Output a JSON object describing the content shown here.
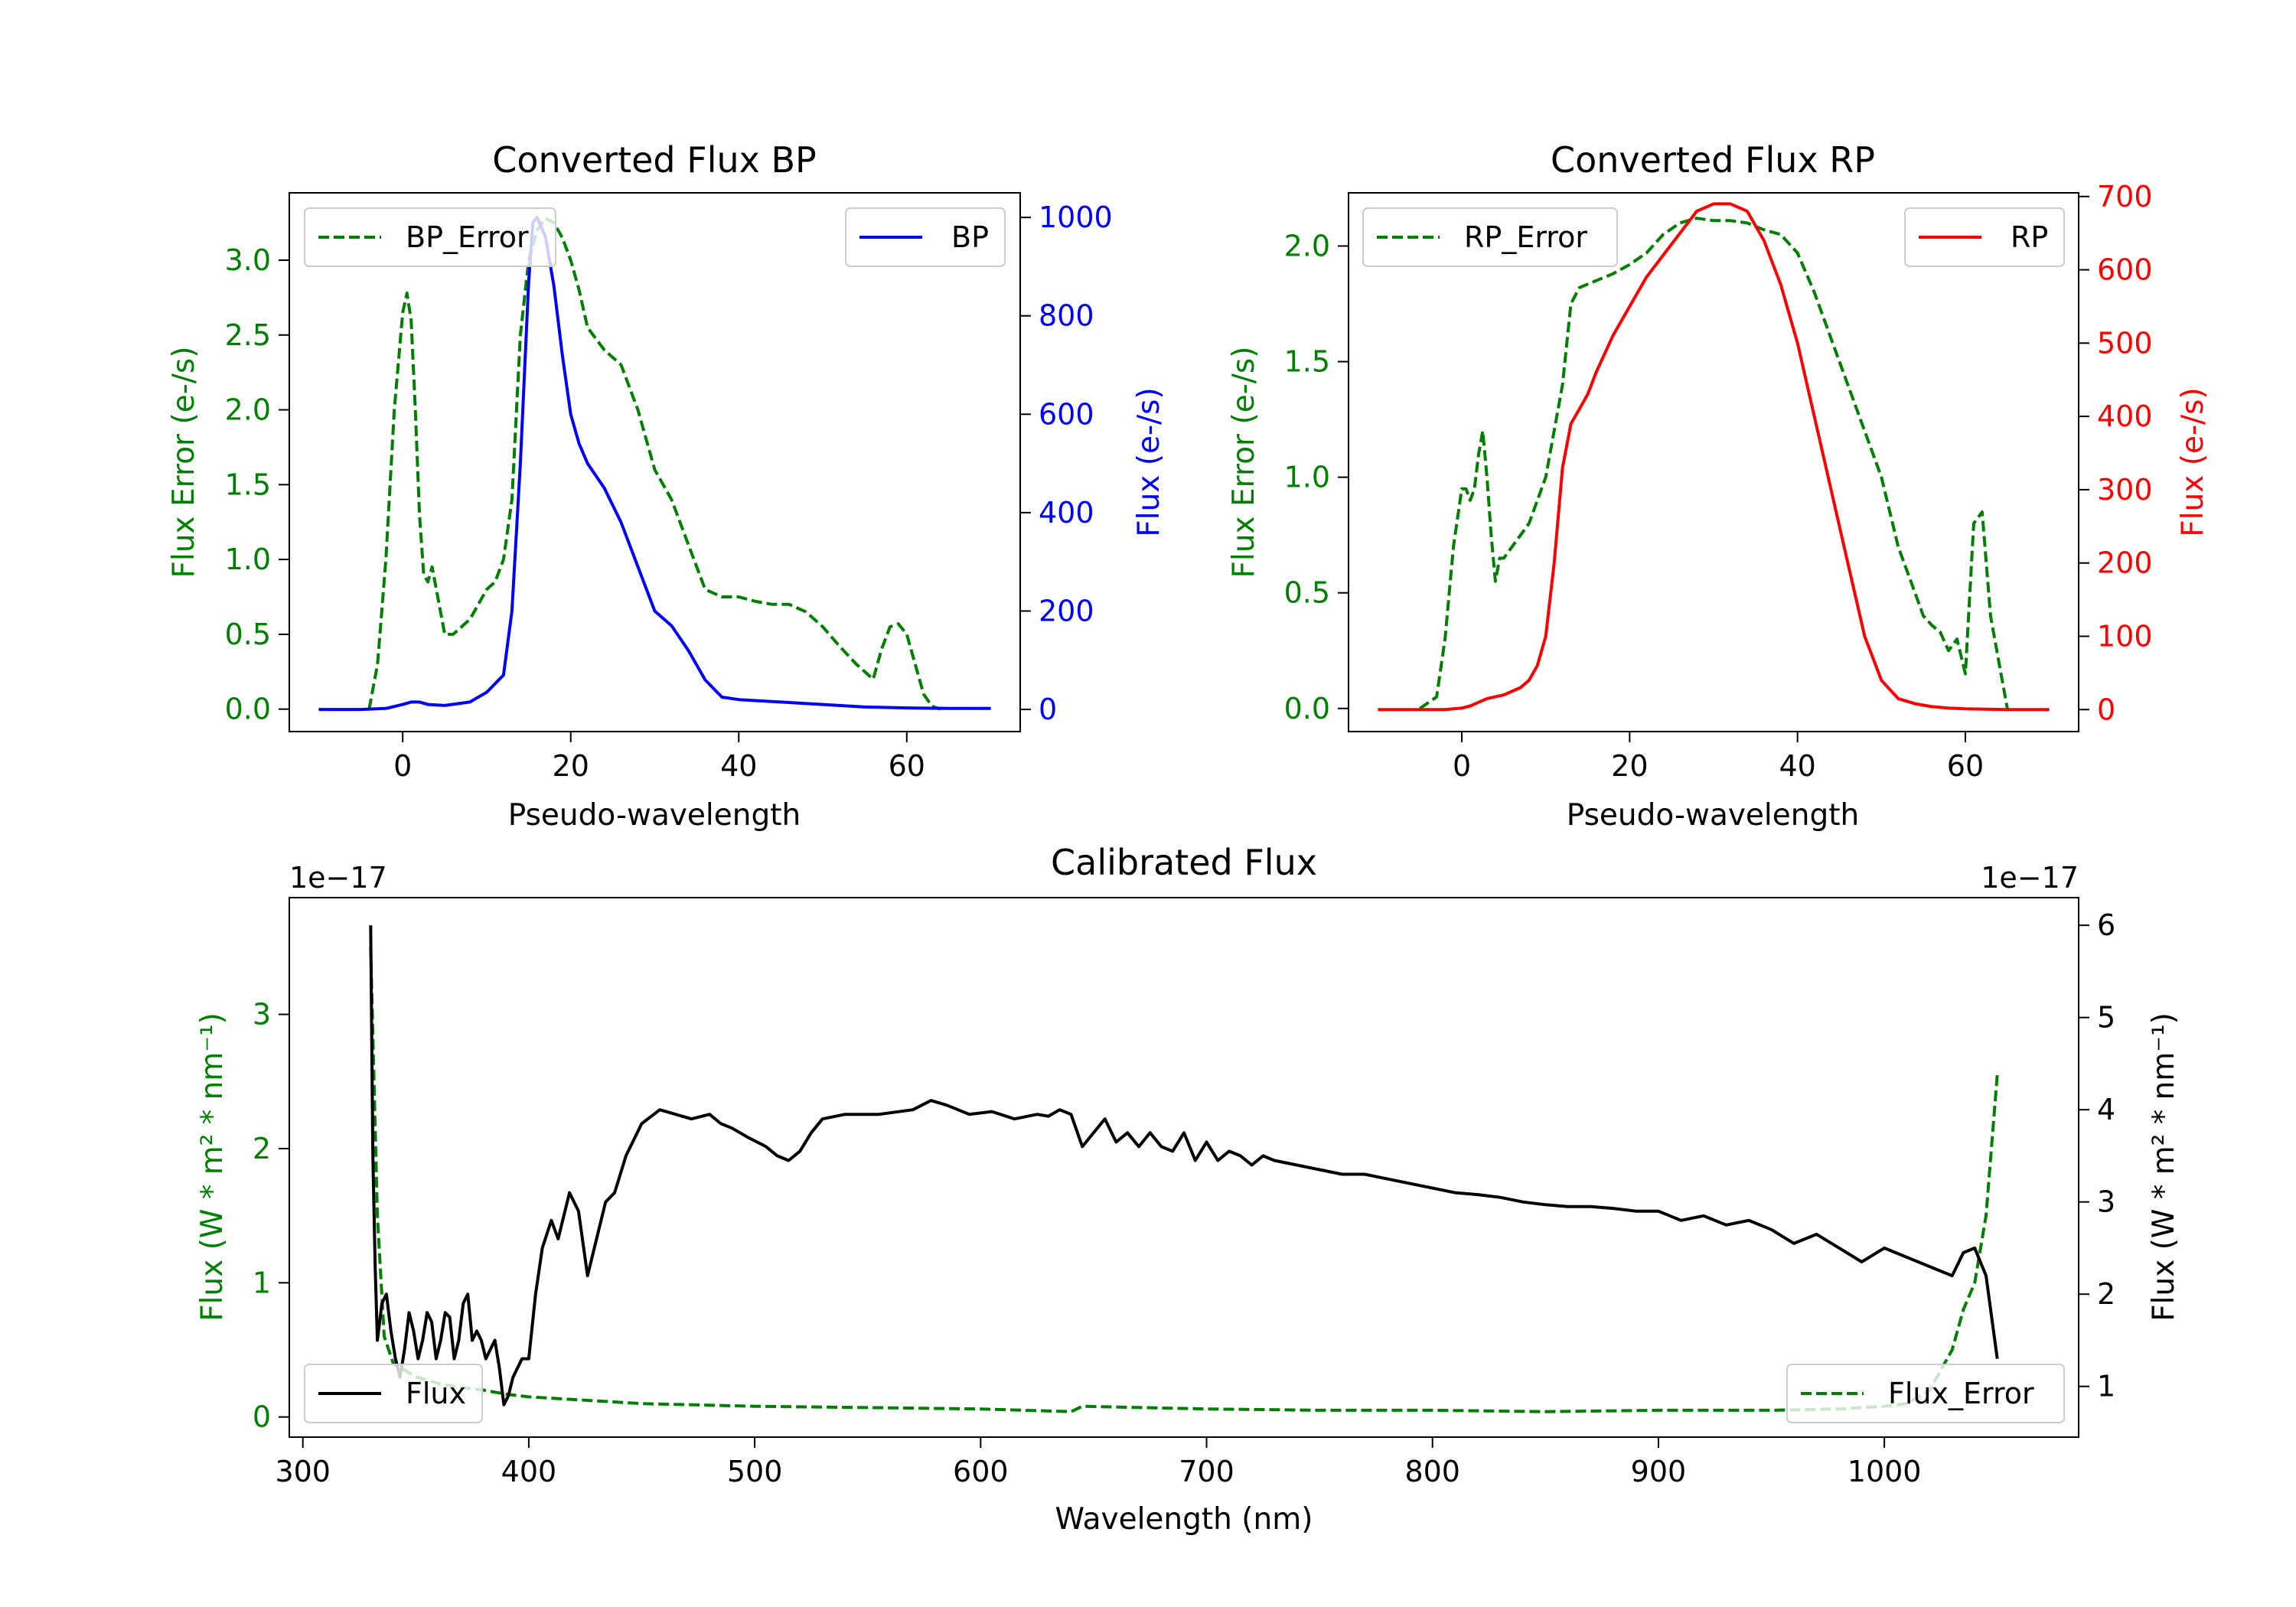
{
  "colors": {
    "error": "#008000",
    "bp": "#0000ff",
    "rp": "#ff0000",
    "flux": "#000000",
    "axes": "#000000"
  },
  "chart_data": [
    {
      "id": "bp",
      "type": "line",
      "title": "Converted Flux BP",
      "xlabel": "Pseudo-wavelength",
      "ylabel_left": "Flux Error (e-/s)",
      "ylabel_right": "Flux (e-/s)",
      "xlim": [
        -13.5,
        73.5
      ],
      "ylim_left": [
        -0.15,
        3.45
      ],
      "ylim_right": [
        -45,
        1050
      ],
      "xticks": [
        0,
        20,
        40,
        60
      ],
      "yticks_left": [
        0.0,
        0.5,
        1.0,
        1.5,
        2.0,
        2.5,
        3.0
      ],
      "yticks_right": [
        0,
        200,
        400,
        600,
        800,
        1000
      ],
      "legend_left": "BP_Error",
      "legend_right": "BP",
      "series": [
        {
          "name": "BP_Error",
          "axis": "left",
          "style": "dashed",
          "color": "#008000",
          "x": [
            -4,
            -3,
            -2,
            -1,
            0,
            0.5,
            1,
            1.5,
            2,
            2.5,
            3,
            3.5,
            4,
            5,
            6,
            8,
            10,
            11,
            12,
            13,
            14,
            15,
            16,
            17,
            18,
            19,
            20,
            21,
            22,
            24,
            26,
            28,
            30,
            32,
            34,
            36,
            38,
            40,
            42,
            44,
            46,
            48,
            50,
            52,
            54,
            56,
            57,
            58,
            59,
            60,
            61,
            62,
            63,
            64
          ],
          "y": [
            0.0,
            0.3,
            1.0,
            2.0,
            2.65,
            2.78,
            2.6,
            2.0,
            1.3,
            0.9,
            0.85,
            0.95,
            0.8,
            0.5,
            0.5,
            0.6,
            0.8,
            0.85,
            1.0,
            1.4,
            2.5,
            3.0,
            3.2,
            3.28,
            3.25,
            3.15,
            3.0,
            2.8,
            2.55,
            2.4,
            2.3,
            2.0,
            1.6,
            1.4,
            1.1,
            0.8,
            0.75,
            0.75,
            0.72,
            0.7,
            0.7,
            0.65,
            0.55,
            0.42,
            0.3,
            0.2,
            0.4,
            0.55,
            0.57,
            0.5,
            0.3,
            0.1,
            0.02,
            0.0
          ]
        },
        {
          "name": "BP",
          "axis": "right",
          "style": "solid",
          "color": "#0000ff",
          "x": [
            -10,
            -5,
            -2,
            0,
            1,
            2,
            3,
            5,
            8,
            10,
            12,
            13,
            14,
            15,
            15.5,
            16,
            17,
            18,
            19,
            20,
            21,
            22,
            24,
            26,
            28,
            30,
            32,
            34,
            36,
            38,
            40,
            45,
            50,
            55,
            60,
            65,
            70
          ],
          "y": [
            0,
            0,
            2,
            10,
            15,
            15,
            10,
            8,
            15,
            35,
            70,
            200,
            500,
            870,
            990,
            1000,
            960,
            860,
            720,
            600,
            540,
            500,
            450,
            380,
            290,
            200,
            170,
            120,
            60,
            25,
            20,
            15,
            10,
            5,
            3,
            2,
            2
          ]
        }
      ]
    },
    {
      "id": "rp",
      "type": "line",
      "title": "Converted Flux RP",
      "xlabel": "Pseudo-wavelength",
      "ylabel_left": "Flux Error (e-/s)",
      "ylabel_right": "Flux (e-/s)",
      "xlim": [
        -13.5,
        73.5
      ],
      "ylim_left": [
        -0.1,
        2.23
      ],
      "ylim_right": [
        -30,
        705
      ],
      "xticks": [
        0,
        20,
        40,
        60
      ],
      "yticks_left": [
        0.0,
        0.5,
        1.0,
        1.5,
        2.0
      ],
      "yticks_right": [
        0,
        100,
        200,
        300,
        400,
        500,
        600,
        700
      ],
      "legend_left": "RP_Error",
      "legend_right": "RP",
      "series": [
        {
          "name": "RP_Error",
          "axis": "left",
          "style": "dashed",
          "color": "#008000",
          "x": [
            -5,
            -3,
            -2,
            -1,
            0,
            0.5,
            1,
            1.5,
            2,
            2.5,
            3,
            3.5,
            4,
            4.5,
            5,
            6,
            8,
            10,
            12,
            13,
            14,
            16,
            18,
            20,
            22,
            24,
            26,
            28,
            30,
            32,
            34,
            36,
            38,
            40,
            42,
            44,
            46,
            48,
            50,
            52,
            54,
            55,
            56,
            57,
            58,
            59,
            60,
            61,
            62,
            63,
            64,
            65
          ],
          "y": [
            0.0,
            0.05,
            0.3,
            0.7,
            0.95,
            0.95,
            0.9,
            0.95,
            1.1,
            1.2,
            1.0,
            0.75,
            0.55,
            0.65,
            0.65,
            0.7,
            0.8,
            1.0,
            1.4,
            1.75,
            1.82,
            1.85,
            1.88,
            1.92,
            1.97,
            2.05,
            2.1,
            2.12,
            2.11,
            2.11,
            2.1,
            2.07,
            2.05,
            1.97,
            1.8,
            1.6,
            1.4,
            1.2,
            1.0,
            0.7,
            0.5,
            0.4,
            0.36,
            0.33,
            0.25,
            0.3,
            0.15,
            0.8,
            0.85,
            0.4,
            0.2,
            0.0
          ]
        },
        {
          "name": "RP",
          "axis": "right",
          "style": "solid",
          "color": "#ff0000",
          "x": [
            -10,
            -5,
            -2,
            0,
            1,
            2,
            3,
            5,
            7,
            8,
            9,
            10,
            11,
            12,
            13,
            14,
            15,
            16,
            18,
            20,
            22,
            24,
            26,
            28,
            30,
            32,
            34,
            36,
            38,
            40,
            42,
            44,
            46,
            48,
            50,
            52,
            54,
            56,
            58,
            60,
            65,
            70
          ],
          "y": [
            0,
            0,
            0,
            2,
            5,
            10,
            15,
            20,
            30,
            40,
            60,
            100,
            200,
            330,
            390,
            410,
            430,
            460,
            510,
            550,
            590,
            620,
            650,
            680,
            690,
            690,
            680,
            640,
            580,
            500,
            400,
            300,
            200,
            100,
            40,
            15,
            8,
            4,
            2,
            1,
            0,
            0
          ]
        }
      ]
    },
    {
      "id": "calibrated",
      "type": "line",
      "title": "Calibrated Flux",
      "xlabel": "Wavelength (nm)",
      "ylabel_left": "Flux (W * m² * nm⁻¹)",
      "ylabel_right": "Flux (W * m² * nm⁻¹)",
      "multiplier_left": "1e−17",
      "multiplier_right": "1e−17",
      "xlim": [
        294,
        1086
      ],
      "ylim_left": [
        -0.15,
        3.87
      ],
      "ylim_right": [
        0.45,
        6.3
      ],
      "xticks": [
        300,
        400,
        500,
        600,
        700,
        800,
        900,
        1000
      ],
      "yticks_left": [
        0,
        1,
        2,
        3
      ],
      "yticks_right": [
        1,
        2,
        3,
        4,
        5,
        6
      ],
      "legend_left": "Flux",
      "legend_right": "Flux_Error",
      "series": [
        {
          "name": "Flux_Error",
          "axis": "left",
          "style": "dashed",
          "color": "#008000",
          "x": [
            330,
            333,
            336,
            340,
            350,
            360,
            370,
            380,
            390,
            400,
            420,
            450,
            500,
            550,
            600,
            640,
            645,
            700,
            750,
            800,
            850,
            900,
            950,
            980,
            1000,
            1010,
            1020,
            1030,
            1035,
            1040,
            1045,
            1050
          ],
          "y": [
            3.5,
            1.5,
            0.6,
            0.4,
            0.3,
            0.25,
            0.22,
            0.2,
            0.17,
            0.15,
            0.13,
            0.1,
            0.08,
            0.07,
            0.06,
            0.04,
            0.08,
            0.06,
            0.05,
            0.05,
            0.04,
            0.05,
            0.05,
            0.06,
            0.08,
            0.1,
            0.2,
            0.5,
            0.8,
            1.0,
            1.5,
            2.55
          ]
        },
        {
          "name": "Flux",
          "axis": "right",
          "style": "solid",
          "color": "#000000",
          "x": [
            330,
            331,
            332,
            333,
            335,
            337,
            339,
            341,
            343,
            345,
            347,
            349,
            351,
            353,
            355,
            357,
            359,
            361,
            363,
            365,
            367,
            369,
            371,
            373,
            375,
            377,
            379,
            381,
            383,
            385,
            387,
            389,
            391,
            393,
            395,
            397,
            400,
            403,
            406,
            410,
            413,
            418,
            422,
            426,
            430,
            434,
            438,
            443,
            450,
            458,
            465,
            472,
            480,
            485,
            490,
            497,
            505,
            510,
            515,
            520,
            525,
            530,
            540,
            555,
            570,
            578,
            585,
            595,
            605,
            615,
            625,
            630,
            635,
            640,
            645,
            650,
            655,
            660,
            665,
            670,
            675,
            680,
            685,
            690,
            695,
            700,
            705,
            710,
            715,
            720,
            725,
            730,
            740,
            750,
            760,
            770,
            780,
            790,
            800,
            810,
            820,
            830,
            840,
            850,
            860,
            870,
            880,
            890,
            900,
            910,
            920,
            930,
            940,
            950,
            960,
            970,
            980,
            990,
            1000,
            1010,
            1020,
            1030,
            1035,
            1040,
            1045,
            1050
          ],
          "y": [
            6.0,
            3.5,
            2.3,
            1.5,
            1.9,
            2.0,
            1.6,
            1.3,
            1.1,
            1.4,
            1.8,
            1.6,
            1.3,
            1.5,
            1.8,
            1.7,
            1.3,
            1.5,
            1.8,
            1.75,
            1.3,
            1.5,
            1.9,
            2.0,
            1.5,
            1.6,
            1.5,
            1.3,
            1.4,
            1.5,
            1.2,
            0.8,
            0.9,
            1.1,
            1.2,
            1.3,
            1.3,
            2.0,
            2.5,
            2.8,
            2.6,
            3.1,
            2.9,
            2.2,
            2.6,
            3.0,
            3.1,
            3.5,
            3.85,
            4.0,
            3.95,
            3.9,
            3.95,
            3.85,
            3.8,
            3.7,
            3.6,
            3.5,
            3.45,
            3.55,
            3.75,
            3.9,
            3.95,
            3.95,
            4.0,
            4.1,
            4.05,
            3.95,
            3.98,
            3.9,
            3.95,
            3.93,
            4.0,
            3.95,
            3.6,
            3.75,
            3.9,
            3.65,
            3.75,
            3.6,
            3.75,
            3.6,
            3.55,
            3.75,
            3.45,
            3.65,
            3.45,
            3.55,
            3.5,
            3.4,
            3.5,
            3.45,
            3.4,
            3.35,
            3.3,
            3.3,
            3.25,
            3.2,
            3.15,
            3.1,
            3.08,
            3.05,
            3.0,
            2.97,
            2.95,
            2.95,
            2.93,
            2.9,
            2.9,
            2.8,
            2.85,
            2.75,
            2.8,
            2.7,
            2.55,
            2.65,
            2.5,
            2.35,
            2.5,
            2.4,
            2.3,
            2.2,
            2.45,
            2.5,
            2.2,
            1.3
          ]
        }
      ]
    }
  ]
}
